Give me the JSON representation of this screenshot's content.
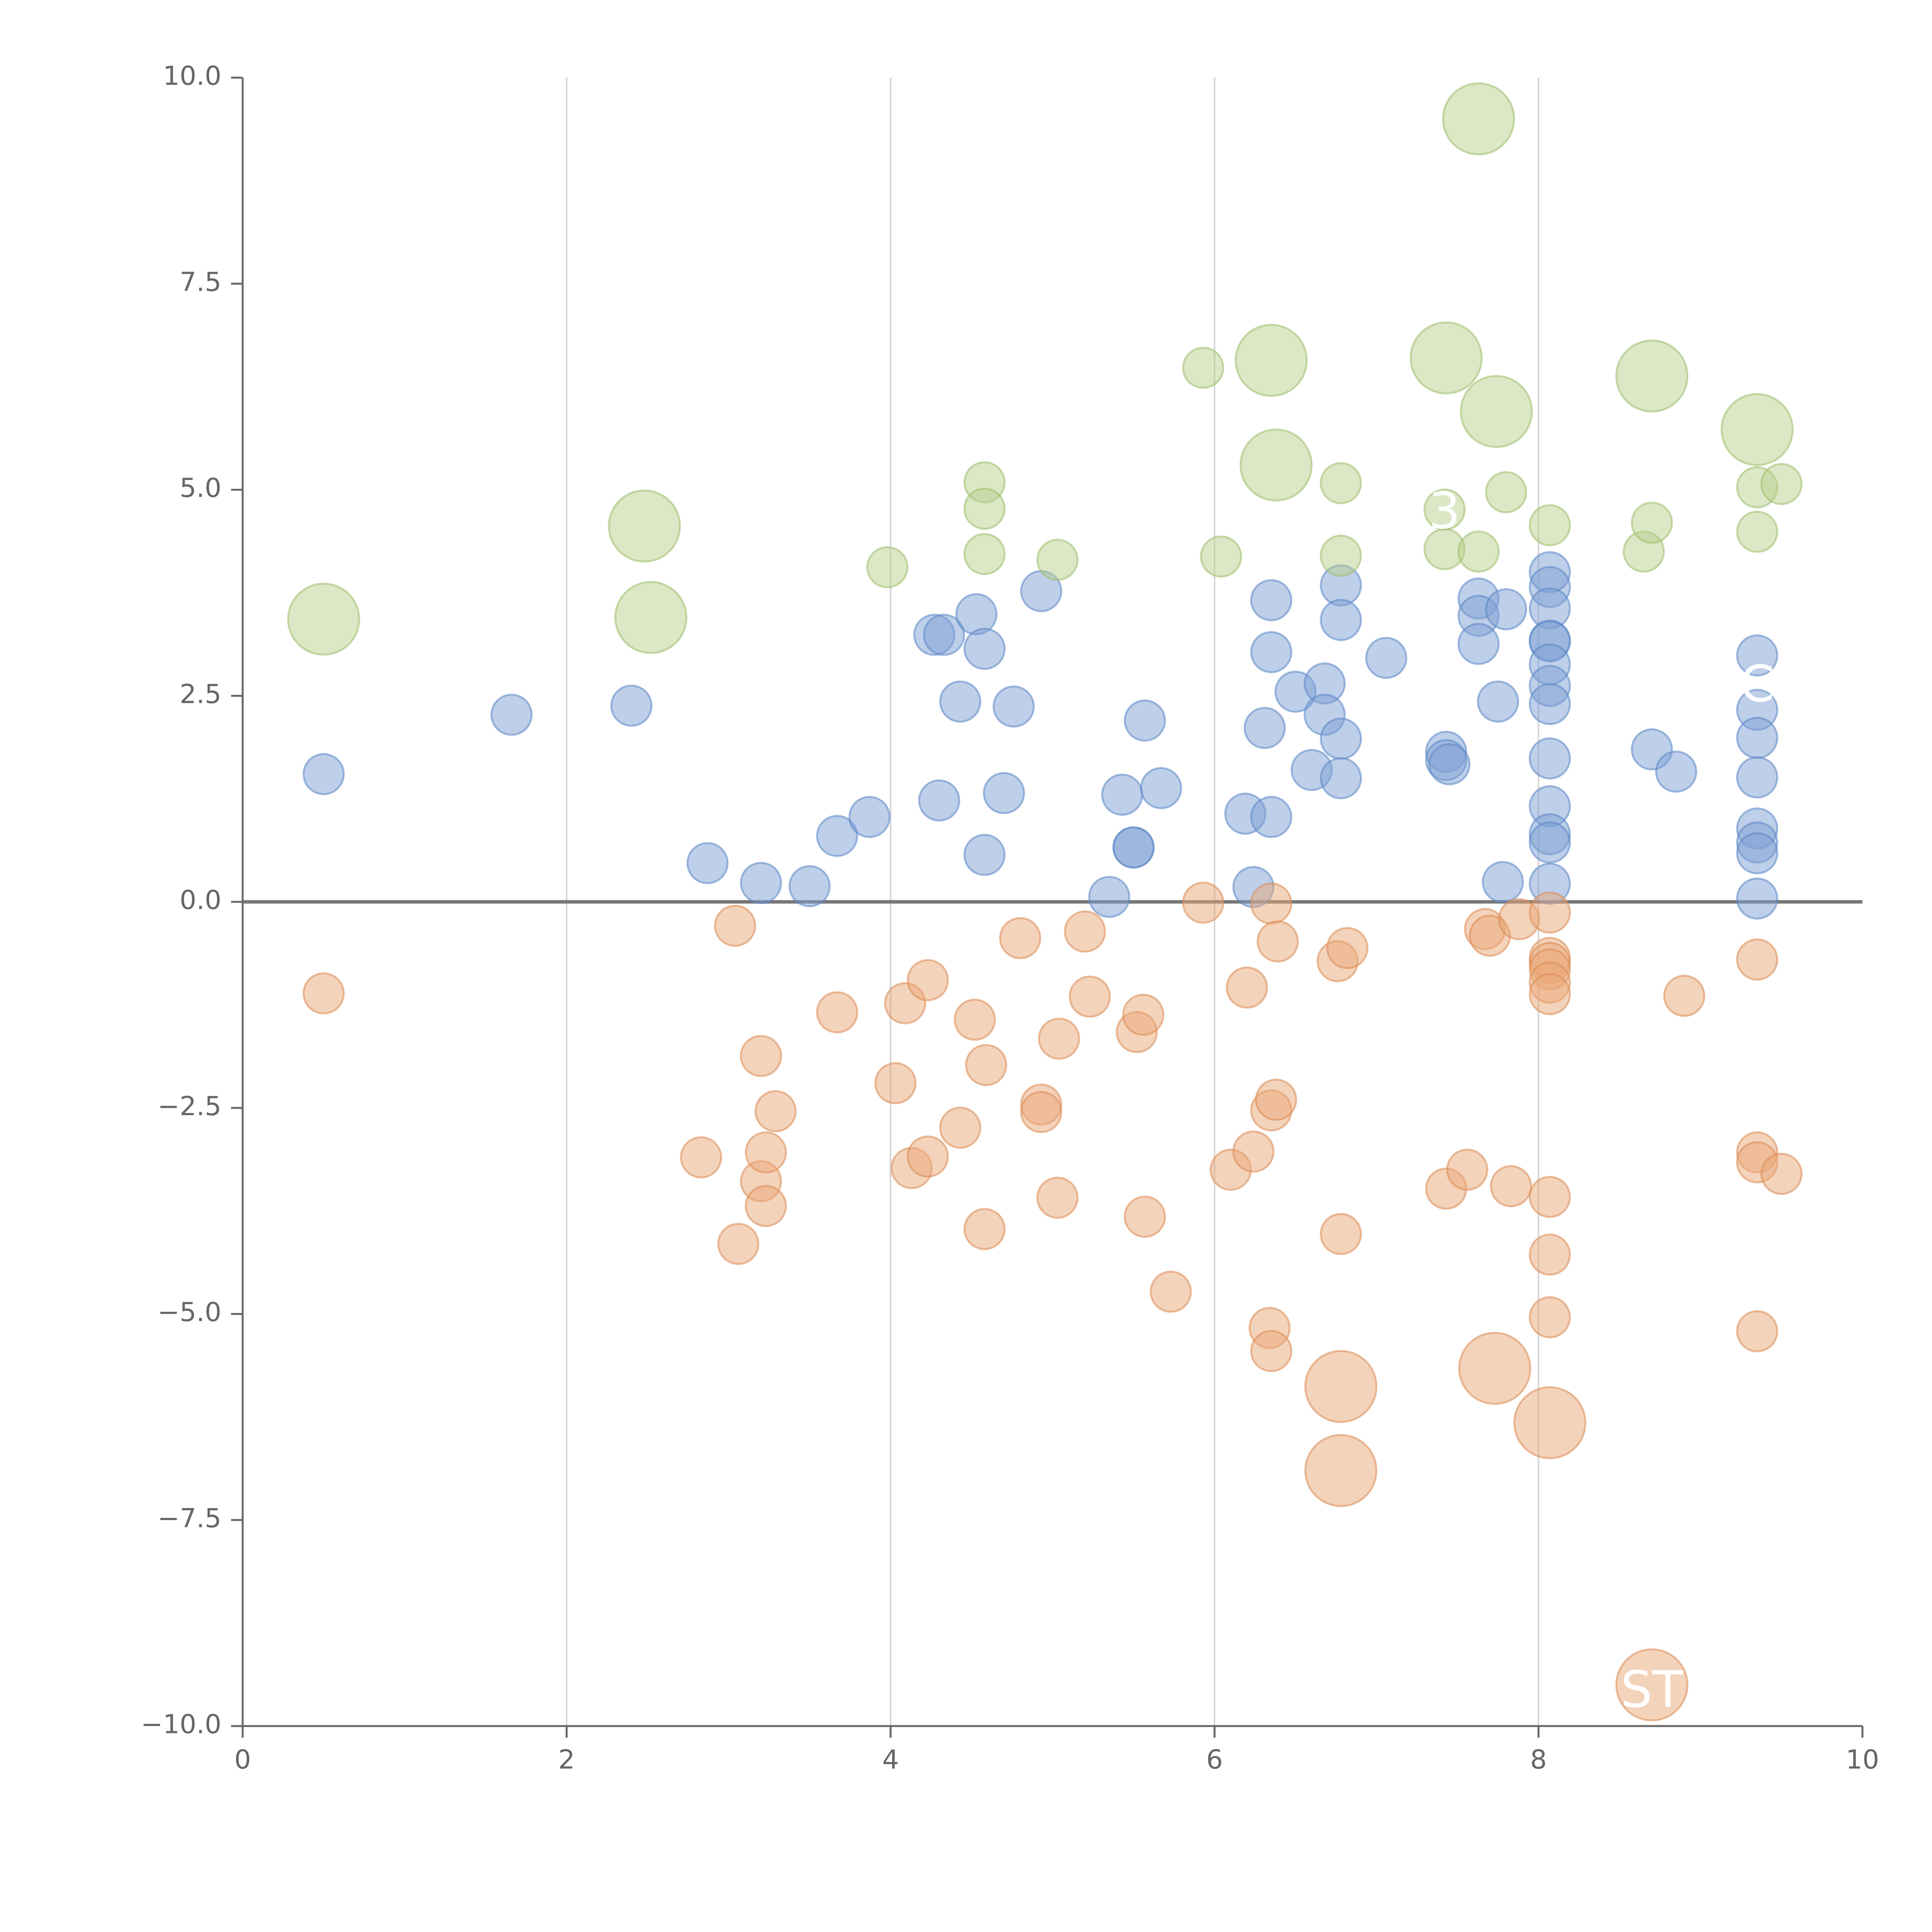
{
  "chart_data": {
    "type": "scatter",
    "title": "",
    "xlabel": "",
    "ylabel": "",
    "xlim": [
      0,
      10
    ],
    "ylim": [
      -10,
      10
    ],
    "x_ticks": [
      "0",
      "2",
      "4",
      "6",
      "8",
      "10"
    ],
    "y_ticks": [
      "10.0",
      "7.5",
      "5.0",
      "2.5",
      "0.0",
      "−2.5",
      "−5.0",
      "−7.5",
      "−10.0"
    ],
    "x_tick_values": [
      0,
      2,
      4,
      6,
      8,
      10
    ],
    "y_tick_values": [
      10,
      7.5,
      5,
      2.5,
      0,
      -2.5,
      -5,
      -7.5,
      -10
    ],
    "x_grid": true,
    "zero_line": true,
    "size_unit": "relative bubble size",
    "series": [
      {
        "name": "blue",
        "color": "#7da0d4",
        "stroke": "#5a86c6",
        "points": [
          [
            0.5,
            1.55,
            1
          ],
          [
            1.66,
            2.27,
            1
          ],
          [
            2.4,
            2.38,
            1
          ],
          [
            2.87,
            0.47,
            1
          ],
          [
            3.2,
            0.23,
            1
          ],
          [
            3.5,
            0.19,
            1
          ],
          [
            3.67,
            0.8,
            1
          ],
          [
            3.87,
            1.03,
            1
          ],
          [
            4.27,
            3.24,
            1
          ],
          [
            4.33,
            3.24,
            1
          ],
          [
            4.3,
            1.23,
            1
          ],
          [
            4.43,
            2.43,
            1
          ],
          [
            4.53,
            3.49,
            1
          ],
          [
            4.58,
            3.07,
            1
          ],
          [
            4.58,
            0.57,
            1
          ],
          [
            4.76,
            2.37,
            1
          ],
          [
            4.7,
            1.32,
            1
          ],
          [
            4.93,
            3.77,
            1
          ],
          [
            5.43,
            1.3,
            1
          ],
          [
            5.57,
            2.2,
            1
          ],
          [
            5.67,
            1.38,
            1
          ],
          [
            5.5,
            0.66,
            1
          ],
          [
            5.5,
            0.66,
            1
          ],
          [
            5.35,
            0.06,
            1
          ],
          [
            6.19,
            1.07,
            1
          ],
          [
            6.24,
            0.18,
            1
          ],
          [
            6.31,
            2.11,
            1
          ],
          [
            6.35,
            3.66,
            1
          ],
          [
            6.35,
            3.03,
            1
          ],
          [
            6.35,
            1.03,
            1
          ],
          [
            6.5,
            2.55,
            1
          ],
          [
            6.6,
            1.6,
            1
          ],
          [
            6.68,
            2.65,
            1
          ],
          [
            6.68,
            2.27,
            1
          ],
          [
            6.78,
            3.84,
            1
          ],
          [
            6.78,
            3.42,
            1
          ],
          [
            6.78,
            1.98,
            1
          ],
          [
            6.78,
            1.5,
            1
          ],
          [
            7.06,
            2.96,
            1
          ],
          [
            7.43,
            1.82,
            1
          ],
          [
            7.43,
            1.72,
            1
          ],
          [
            7.45,
            1.67,
            1
          ],
          [
            7.63,
            3.68,
            1
          ],
          [
            7.63,
            3.47,
            1
          ],
          [
            7.63,
            3.13,
            1
          ],
          [
            7.75,
            2.43,
            1
          ],
          [
            7.8,
            3.55,
            1
          ],
          [
            7.78,
            0.24,
            1
          ],
          [
            8.07,
            4.0,
            1
          ],
          [
            8.07,
            3.82,
            1
          ],
          [
            8.07,
            3.56,
            1
          ],
          [
            8.07,
            3.17,
            1
          ],
          [
            8.07,
            3.16,
            1
          ],
          [
            8.07,
            2.88,
            1
          ],
          [
            8.07,
            2.62,
            1
          ],
          [
            8.07,
            2.4,
            1
          ],
          [
            8.07,
            1.74,
            1
          ],
          [
            8.07,
            1.16,
            1
          ],
          [
            8.07,
            0.82,
            1
          ],
          [
            8.07,
            0.72,
            1
          ],
          [
            8.07,
            0.22,
            1
          ],
          [
            8.7,
            1.85,
            1
          ],
          [
            8.85,
            1.58,
            1
          ],
          [
            9.35,
            2.99,
            1
          ],
          [
            9.35,
            2.33,
            1
          ],
          [
            9.35,
            1.99,
            1
          ],
          [
            9.35,
            1.51,
            1
          ],
          [
            9.35,
            0.89,
            1
          ],
          [
            9.35,
            0.72,
            1
          ],
          [
            9.35,
            0.59,
            1
          ],
          [
            9.35,
            0.04,
            1
          ]
        ]
      },
      {
        "name": "orange",
        "color": "#e9a777",
        "stroke": "#da8a52",
        "points": [
          [
            0.5,
            -1.11,
            1
          ],
          [
            3.04,
            -0.29,
            1
          ],
          [
            2.83,
            -3.1,
            1
          ],
          [
            3.06,
            -4.15,
            1
          ],
          [
            3.2,
            -1.87,
            1
          ],
          [
            3.2,
            -3.39,
            1
          ],
          [
            3.23,
            -3.04,
            1
          ],
          [
            3.23,
            -3.69,
            1
          ],
          [
            3.29,
            -2.54,
            1
          ],
          [
            3.67,
            -1.34,
            1
          ],
          [
            4.03,
            -2.2,
            1
          ],
          [
            4.09,
            -1.23,
            1
          ],
          [
            4.13,
            -3.23,
            1
          ],
          [
            4.23,
            -0.95,
            1
          ],
          [
            4.23,
            -3.09,
            1
          ],
          [
            4.43,
            -2.74,
            1
          ],
          [
            4.52,
            -1.43,
            1
          ],
          [
            4.59,
            -1.98,
            1
          ],
          [
            4.58,
            -3.97,
            1
          ],
          [
            4.8,
            -0.44,
            1
          ],
          [
            4.93,
            -2.46,
            1
          ],
          [
            4.93,
            -2.55,
            1
          ],
          [
            5.04,
            -1.66,
            1
          ],
          [
            5.03,
            -3.59,
            1
          ],
          [
            5.2,
            -0.36,
            1
          ],
          [
            5.23,
            -1.15,
            1
          ],
          [
            5.52,
            -1.58,
            1
          ],
          [
            5.56,
            -1.37,
            1
          ],
          [
            5.57,
            -3.82,
            1
          ],
          [
            5.73,
            -4.73,
            1
          ],
          [
            5.93,
            -0.01,
            1
          ],
          [
            6.1,
            -3.25,
            1
          ],
          [
            6.2,
            -1.04,
            1
          ],
          [
            6.24,
            -3.03,
            1
          ],
          [
            6.34,
            -5.17,
            1
          ],
          [
            6.35,
            -5.45,
            1
          ],
          [
            6.35,
            -2.53,
            1
          ],
          [
            6.38,
            -2.4,
            1
          ],
          [
            6.35,
            -0.02,
            1
          ],
          [
            6.39,
            -0.48,
            1
          ],
          [
            6.76,
            -0.72,
            1
          ],
          [
            6.82,
            -0.56,
            1
          ],
          [
            6.78,
            -4.03,
            1
          ],
          [
            6.78,
            -5.88,
            4
          ],
          [
            6.78,
            -6.9,
            4
          ],
          [
            7.43,
            -3.48,
            1
          ],
          [
            7.56,
            -3.25,
            1
          ],
          [
            7.67,
            -0.33,
            1
          ],
          [
            7.7,
            -0.41,
            1
          ],
          [
            7.73,
            -5.66,
            4
          ],
          [
            7.83,
            -3.45,
            1
          ],
          [
            7.88,
            -0.21,
            1
          ],
          [
            8.07,
            -0.13,
            1
          ],
          [
            8.07,
            -0.68,
            1
          ],
          [
            8.07,
            -0.74,
            1
          ],
          [
            8.07,
            -0.82,
            1
          ],
          [
            8.07,
            -0.98,
            1
          ],
          [
            8.07,
            -1.12,
            1
          ],
          [
            8.07,
            -3.58,
            1
          ],
          [
            8.07,
            -4.28,
            1
          ],
          [
            8.07,
            -5.04,
            1
          ],
          [
            8.07,
            -6.32,
            4
          ],
          [
            8.7,
            -9.5,
            4
          ],
          [
            8.9,
            -1.14,
            1
          ],
          [
            9.35,
            -0.7,
            1
          ],
          [
            9.35,
            -3.04,
            1
          ],
          [
            9.35,
            -3.16,
            1
          ],
          [
            9.35,
            -5.21,
            1
          ],
          [
            9.5,
            -3.3,
            1
          ]
        ]
      },
      {
        "name": "green",
        "color": "#b7d08b",
        "stroke": "#9cbd69",
        "points": [
          [
            0.5,
            3.43,
            4
          ],
          [
            2.48,
            4.56,
            4
          ],
          [
            2.52,
            3.45,
            4
          ],
          [
            3.98,
            4.06,
            1
          ],
          [
            4.58,
            5.09,
            1
          ],
          [
            4.58,
            4.77,
            1
          ],
          [
            4.58,
            4.22,
            1
          ],
          [
            5.03,
            4.15,
            1
          ],
          [
            5.93,
            6.48,
            1
          ],
          [
            6.04,
            4.19,
            1
          ],
          [
            6.35,
            6.57,
            4
          ],
          [
            6.38,
            5.3,
            4
          ],
          [
            6.78,
            5.08,
            1
          ],
          [
            6.78,
            4.2,
            1
          ],
          [
            7.43,
            6.6,
            4
          ],
          [
            7.42,
            4.76,
            1
          ],
          [
            7.42,
            4.28,
            1
          ],
          [
            7.63,
            9.5,
            4
          ],
          [
            7.63,
            4.25,
            1
          ],
          [
            7.74,
            5.95,
            4
          ],
          [
            7.8,
            4.97,
            1
          ],
          [
            8.07,
            4.57,
            1
          ],
          [
            8.65,
            4.25,
            1
          ],
          [
            8.7,
            6.38,
            4
          ],
          [
            8.7,
            4.6,
            1
          ],
          [
            9.35,
            5.73,
            4
          ],
          [
            9.35,
            5.03,
            1
          ],
          [
            9.35,
            4.49,
            1
          ],
          [
            9.5,
            5.07,
            1
          ]
        ]
      }
    ],
    "annotations": [
      {
        "text": "3",
        "x": 7.42,
        "y": 4.7
      },
      {
        "text": "C",
        "x": 9.35,
        "y": 2.6
      },
      {
        "text": "ST",
        "x": 8.7,
        "y": -9.6
      }
    ]
  }
}
